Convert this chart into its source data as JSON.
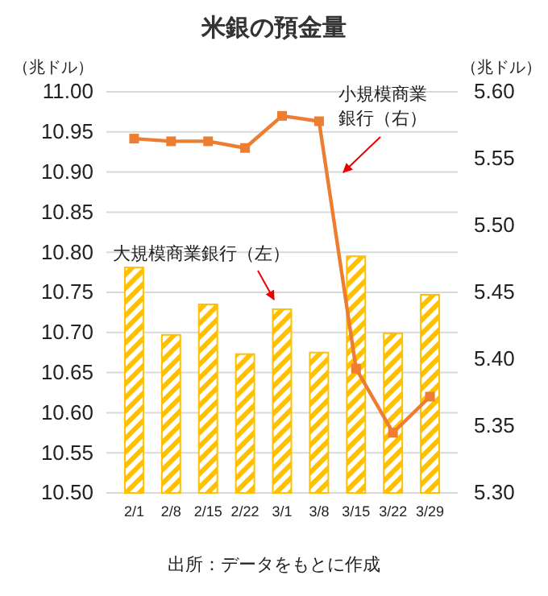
{
  "chart_data": {
    "type": "bar",
    "title": "米銀の預金量",
    "ylabel": "（兆ドル）",
    "y2label": "（兆ドル）",
    "categories": [
      "2/1",
      "2/8",
      "2/15",
      "2/22",
      "3/1",
      "3/8",
      "3/15",
      "3/22",
      "3/29"
    ],
    "series": [
      {
        "name": "大規模商業銀行（左）",
        "color": "#ffc000",
        "values": [
          10.781,
          10.697,
          10.735,
          10.673,
          10.729,
          10.675,
          10.795,
          10.699,
          10.747
        ]
      },
      {
        "name": "小規模商業銀行（右）",
        "type": "line",
        "axis": "y2",
        "color": "#ed7d31",
        "marker": "square",
        "values": [
          5.565,
          5.563,
          5.563,
          5.558,
          5.582,
          5.578,
          5.393,
          5.345,
          5.372
        ]
      }
    ],
    "ylim": [
      10.5,
      11.0
    ],
    "yticks": [
      {
        "value": 10.5,
        "label": "10.50"
      },
      {
        "value": 10.55,
        "label": "10.55"
      },
      {
        "value": 10.6,
        "label": "10.60"
      },
      {
        "value": 10.65,
        "label": "10.65"
      },
      {
        "value": 10.7,
        "label": "10.70"
      },
      {
        "value": 10.75,
        "label": "10.75"
      },
      {
        "value": 10.8,
        "label": "10.80"
      },
      {
        "value": 10.85,
        "label": "10.85"
      },
      {
        "value": 10.9,
        "label": "10.90"
      },
      {
        "value": 10.95,
        "label": "10.95"
      },
      {
        "value": 11.0,
        "label": "11.00"
      }
    ],
    "y2lim": [
      5.3,
      5.6
    ],
    "y2ticks": [
      {
        "value": 5.3,
        "label": "5.30"
      },
      {
        "value": 5.35,
        "label": "5.35"
      },
      {
        "value": 5.4,
        "label": "5.40"
      },
      {
        "value": 5.45,
        "label": "5.45"
      },
      {
        "value": 5.5,
        "label": "5.50"
      },
      {
        "value": 5.55,
        "label": "5.55"
      },
      {
        "value": 5.6,
        "label": "5.60"
      }
    ],
    "grid": "y",
    "annotations": [
      "出所：データをもとに作成"
    ]
  }
}
